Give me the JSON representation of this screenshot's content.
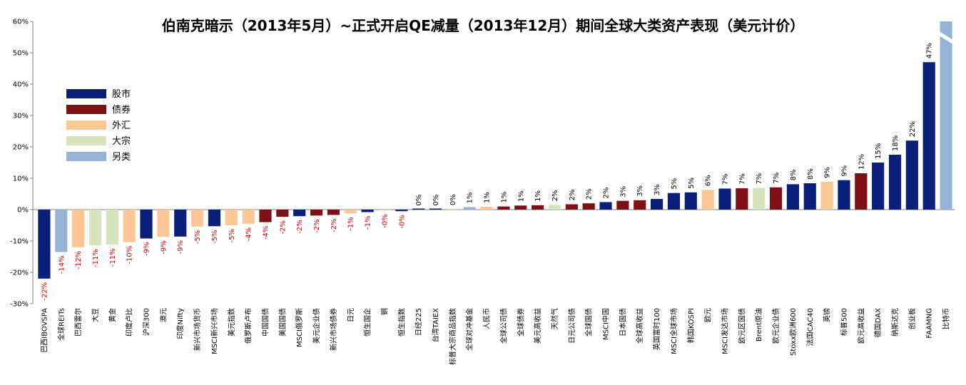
{
  "chart_data": {
    "type": "bar",
    "title": "伯南克暗示（2013年5月）~正式开启QE减量（2013年12月）期间全球大类资产表现（美元计价）",
    "xlabel": "",
    "ylabel": "",
    "ylim": [
      -30,
      60
    ],
    "yticks": [
      "60%",
      "50%",
      "40%",
      "30%",
      "20%",
      "10%",
      "0%",
      "-10%",
      "-20%",
      "-30%"
    ],
    "grid": false,
    "legend_position": "upper-left",
    "asset_classes": [
      {
        "name": "股市",
        "color": "#0a1f7a"
      },
      {
        "name": "债券",
        "color": "#7f1015"
      },
      {
        "name": "外汇",
        "color": "#fcc695"
      },
      {
        "name": "大宗",
        "color": "#d8e4bc"
      },
      {
        "name": "另类",
        "color": "#95b3d7"
      }
    ],
    "bars": [
      {
        "category": "巴西IBOVSPA",
        "value": -22,
        "label": "-22%",
        "class": 0
      },
      {
        "category": "全球REITs",
        "value": -13.5,
        "label": "-14%",
        "class": 4
      },
      {
        "category": "巴西雷尔",
        "value": -12,
        "label": "-12%",
        "class": 2
      },
      {
        "category": "大豆",
        "value": -11.4,
        "label": "-11%",
        "class": 3
      },
      {
        "category": "黄金",
        "value": -11.2,
        "label": "-11%",
        "class": 3
      },
      {
        "category": "印度卢比",
        "value": -10.4,
        "label": "-10%",
        "class": 2
      },
      {
        "category": "沪深300",
        "value": -9.2,
        "label": "-9%",
        "class": 0
      },
      {
        "category": "澳元",
        "value": -8.7,
        "label": "-9%",
        "class": 2
      },
      {
        "category": "印度Nifty",
        "value": -8.6,
        "label": "-9%",
        "class": 0
      },
      {
        "category": "新兴市场货币",
        "value": -5.4,
        "label": "-5%",
        "class": 2
      },
      {
        "category": "MSCI新兴市场",
        "value": -5.3,
        "label": "-5%",
        "class": 0
      },
      {
        "category": "美元指数",
        "value": -5.0,
        "label": "-5%",
        "class": 2
      },
      {
        "category": "俄罗斯卢布",
        "value": -4.5,
        "label": "-4%",
        "class": 2
      },
      {
        "category": "中国国债",
        "value": -4.0,
        "label": "-4%",
        "class": 1
      },
      {
        "category": "美国国债",
        "value": -2.3,
        "label": "-2%",
        "class": 1
      },
      {
        "category": "MSCI俄罗斯",
        "value": -2.1,
        "label": "-2%",
        "class": 0
      },
      {
        "category": "美元企业债",
        "value": -1.9,
        "label": "-2%",
        "class": 1
      },
      {
        "category": "新兴市场债券",
        "value": -1.7,
        "label": "-2%",
        "class": 1
      },
      {
        "category": "日元",
        "value": -1.2,
        "label": "-1%",
        "class": 2
      },
      {
        "category": "恒生国企",
        "value": -0.8,
        "label": "-1%",
        "class": 0
      },
      {
        "category": "铜",
        "value": -0.3,
        "label": "-0%",
        "class": 3
      },
      {
        "category": "恒生指数",
        "value": -0.5,
        "label": "-0%",
        "class": 0
      },
      {
        "category": "日经225",
        "value": 0.1,
        "label": "0%",
        "class": 0
      },
      {
        "category": "台湾TAIEX",
        "value": 0.1,
        "label": "0%",
        "class": 0
      },
      {
        "category": "标普大宗商品指数",
        "value": 0.2,
        "label": "0%",
        "class": 3
      },
      {
        "category": "全球对冲基金",
        "value": 0.8,
        "label": "1%",
        "class": 4
      },
      {
        "category": "人民币",
        "value": 0.9,
        "label": "1%",
        "class": 2
      },
      {
        "category": "全球公司债",
        "value": 1.0,
        "label": "1%",
        "class": 1
      },
      {
        "category": "全球债券",
        "value": 1.3,
        "label": "1%",
        "class": 1
      },
      {
        "category": "美元高收益",
        "value": 1.4,
        "label": "1%",
        "class": 1
      },
      {
        "category": "天然气",
        "value": 1.5,
        "label": "2%",
        "class": 3
      },
      {
        "category": "日元公司债",
        "value": 1.7,
        "label": "2%",
        "class": 1
      },
      {
        "category": "全球国债",
        "value": 2.0,
        "label": "2%",
        "class": 1
      },
      {
        "category": "MSCI中国",
        "value": 2.4,
        "label": "2%",
        "class": 0
      },
      {
        "category": "日本国债",
        "value": 2.8,
        "label": "3%",
        "class": 1
      },
      {
        "category": "全球高收益",
        "value": 3.0,
        "label": "3%",
        "class": 1
      },
      {
        "category": "英国富时100",
        "value": 3.4,
        "label": "3%",
        "class": 0
      },
      {
        "category": "MSCI全球市场",
        "value": 5.3,
        "label": "5%",
        "class": 0
      },
      {
        "category": "韩国KOSPI",
        "value": 5.5,
        "label": "5%",
        "class": 0
      },
      {
        "category": "欧元",
        "value": 6.3,
        "label": "6%",
        "class": 2
      },
      {
        "category": "MSCI发达市场",
        "value": 6.7,
        "label": "7%",
        "class": 0
      },
      {
        "category": "欧元区国债",
        "value": 6.8,
        "label": "7%",
        "class": 1
      },
      {
        "category": "Brent原油",
        "value": 6.9,
        "label": "7%",
        "class": 3
      },
      {
        "category": "欧元企业债",
        "value": 7.1,
        "label": "7%",
        "class": 1
      },
      {
        "category": "Stoxx欧洲600",
        "value": 8.1,
        "label": "8%",
        "class": 0
      },
      {
        "category": "法国CAC40",
        "value": 8.4,
        "label": "8%",
        "class": 0
      },
      {
        "category": "英镑",
        "value": 8.9,
        "label": "9%",
        "class": 2
      },
      {
        "category": "标普500",
        "value": 9.4,
        "label": "9%",
        "class": 0
      },
      {
        "category": "欧元高收益",
        "value": 11.6,
        "label": "12%",
        "class": 1
      },
      {
        "category": "德国DAX",
        "value": 15.0,
        "label": "15%",
        "class": 0
      },
      {
        "category": "纳斯达克",
        "value": 17.5,
        "label": "18%",
        "class": 0
      },
      {
        "category": "创业板",
        "value": 22.0,
        "label": "22%",
        "class": 0
      },
      {
        "category": "FAAMNG",
        "value": 47.0,
        "label": "47%",
        "class": 0
      },
      {
        "category": "比特币",
        "value": 60,
        "label": "",
        "class": 4,
        "clipped": true
      }
    ]
  }
}
